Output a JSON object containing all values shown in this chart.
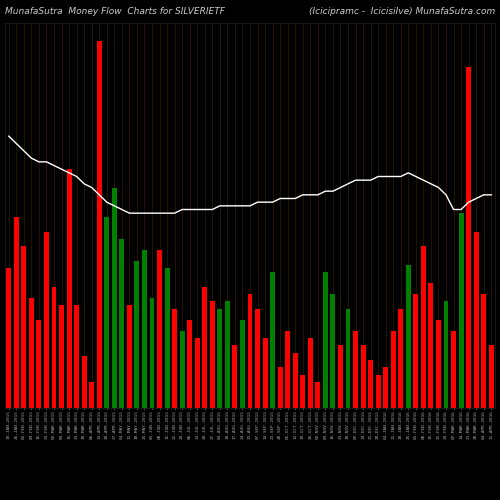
{
  "title_left": "MunafaSutra  Money Flow  Charts for SILVERIETF",
  "title_right": "(Icicipramc -  IcicisiIve) MunafaSutra.com",
  "background_color": "#000000",
  "bar_colors": [
    "red",
    "red",
    "red",
    "red",
    "red",
    "red",
    "red",
    "red",
    "red",
    "red",
    "red",
    "red",
    "red",
    "green",
    "green",
    "green",
    "red",
    "green",
    "green",
    "green",
    "red",
    "green",
    "red",
    "green",
    "red",
    "red",
    "red",
    "red",
    "green",
    "green",
    "red",
    "green",
    "red",
    "red",
    "red",
    "green",
    "red",
    "red",
    "red",
    "red",
    "red",
    "red",
    "green",
    "green",
    "red",
    "green",
    "red",
    "red",
    "red",
    "red",
    "red",
    "red",
    "red",
    "green",
    "red",
    "red",
    "red",
    "red",
    "green",
    "red",
    "green",
    "red",
    "red",
    "red",
    "red"
  ],
  "bar_heights": [
    0.38,
    0.52,
    0.44,
    0.3,
    0.24,
    0.48,
    0.33,
    0.28,
    0.65,
    0.28,
    0.14,
    0.07,
    1.0,
    0.52,
    0.6,
    0.46,
    0.28,
    0.4,
    0.43,
    0.3,
    0.43,
    0.38,
    0.27,
    0.21,
    0.24,
    0.19,
    0.33,
    0.29,
    0.27,
    0.29,
    0.17,
    0.24,
    0.31,
    0.27,
    0.19,
    0.37,
    0.11,
    0.21,
    0.15,
    0.09,
    0.19,
    0.07,
    0.37,
    0.31,
    0.17,
    0.27,
    0.21,
    0.17,
    0.13,
    0.09,
    0.11,
    0.21,
    0.27,
    0.39,
    0.31,
    0.44,
    0.34,
    0.24,
    0.29,
    0.21,
    0.53,
    0.93,
    0.48,
    0.31,
    0.17
  ],
  "line_values": [
    0.74,
    0.72,
    0.7,
    0.68,
    0.67,
    0.67,
    0.66,
    0.65,
    0.64,
    0.63,
    0.61,
    0.6,
    0.58,
    0.56,
    0.55,
    0.54,
    0.53,
    0.53,
    0.53,
    0.53,
    0.53,
    0.53,
    0.53,
    0.54,
    0.54,
    0.54,
    0.54,
    0.54,
    0.55,
    0.55,
    0.55,
    0.55,
    0.55,
    0.56,
    0.56,
    0.56,
    0.57,
    0.57,
    0.57,
    0.58,
    0.58,
    0.58,
    0.59,
    0.59,
    0.6,
    0.61,
    0.62,
    0.62,
    0.62,
    0.63,
    0.63,
    0.63,
    0.63,
    0.64,
    0.63,
    0.62,
    0.61,
    0.6,
    0.58,
    0.54,
    0.54,
    0.56,
    0.57,
    0.58,
    0.58
  ],
  "line_color": "#ffffff",
  "grid_color": "#2a1800",
  "bar_width": 0.65,
  "ylim": [
    0,
    1.05
  ],
  "xlabel_color": "#aaaaaa",
  "title_color": "#cccccc",
  "title_fontsize": 6.5,
  "xlabel_fontsize": 3.2,
  "x_labels": [
    "19-JAN-2015",
    "26-JAN-2015",
    "02-FEB-2015",
    "09-FEB-2015",
    "16-FEB-2015",
    "23-FEB-2015",
    "02-MAR-2015",
    "09-MAR-2015",
    "16-MAR-2015",
    "23-MAR-2015",
    "30-MAR-2015",
    "06-APR-2015",
    "13-APR-2015",
    "20-APR-2015",
    "27-APR-2015",
    "04-MAY-2015",
    "11-MAY-2015",
    "18-MAY-2015",
    "25-MAY-2015",
    "01-JUN-2015",
    "08-JUN-2015",
    "15-JUN-2015",
    "22-JUN-2015",
    "29-JUN-2015",
    "06-JUL-2015",
    "13-JUL-2015",
    "20-JUL-2015",
    "27-JUL-2015",
    "03-AUG-2015",
    "10-AUG-2015",
    "17-AUG-2015",
    "24-AUG-2015",
    "31-AUG-2015",
    "07-SEP-2015",
    "14-SEP-2015",
    "21-SEP-2015",
    "28-SEP-2015",
    "05-OCT-2015",
    "12-OCT-2015",
    "19-OCT-2015",
    "26-OCT-2015",
    "02-NOV-2015",
    "09-NOV-2015",
    "16-NOV-2015",
    "23-NOV-2015",
    "30-NOV-2015",
    "07-DEC-2015",
    "14-DEC-2015",
    "21-DEC-2015",
    "28-DEC-2015",
    "04-JAN-2016",
    "11-JAN-2016",
    "18-JAN-2016",
    "25-JAN-2016",
    "01-FEB-2016",
    "08-FEB-2016",
    "15-FEB-2016",
    "22-FEB-2016",
    "29-FEB-2016",
    "07-MAR-2016",
    "14-MAR-2016",
    "21-MAR-2016",
    "28-MAR-2016",
    "04-APR-2016",
    "11-APR-2016"
  ]
}
